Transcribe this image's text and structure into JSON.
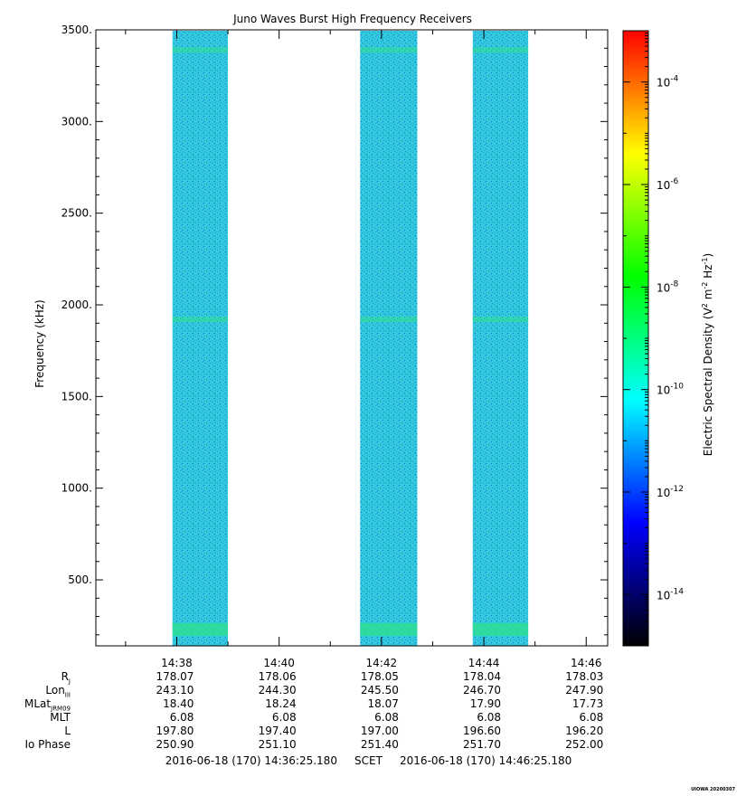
{
  "title": "Juno Waves Burst High Frequency Receivers",
  "colors": {
    "background": "#ffffff",
    "axis": "#000000",
    "spectrum_fill": "#33c9dd",
    "band_highlight": "#30e08a"
  },
  "chart_data": {
    "type": "heatmap",
    "title": "Juno Waves Burst High Frequency Receivers",
    "ylabel": "Frequency (kHz)",
    "ylim": [
      140,
      3500
    ],
    "yticks": [
      500,
      1000,
      1500,
      2000,
      2500,
      3000,
      3500
    ],
    "ytick_labels": [
      "500.",
      "1000.",
      "1500.",
      "2000.",
      "2500.",
      "3000.",
      "3500."
    ],
    "x_start": "2016-06-18 14:36:25.180",
    "x_end": "2016-06-18 14:46:25.180",
    "xticks": [
      "14:38",
      "14:40",
      "14:42",
      "14:44",
      "14:46"
    ],
    "data_intervals": [
      {
        "start": "14:37:55",
        "end": "14:39:00"
      },
      {
        "start": "14:41:35",
        "end": "14:42:42"
      },
      {
        "start": "14:43:47",
        "end": "14:44:52"
      }
    ],
    "enhanced_bands_khz": [
      230,
      1920,
      3390
    ],
    "colorbar": {
      "label": "Electric Spectral Density (V2 m-2 Hz-1)",
      "scale": "log",
      "range": [
        1e-15,
        0.001
      ],
      "ticks": [
        "10-4",
        "10-6",
        "10-8",
        "10-10",
        "10-12",
        "10-14"
      ],
      "tick_exponents": [
        -4,
        -6,
        -8,
        -10,
        -12,
        -14
      ],
      "colormap": [
        "#000000",
        "#00007f",
        "#0000ff",
        "#007fff",
        "#00ffff",
        "#00ff7f",
        "#00ff00",
        "#7fff00",
        "#ffff00",
        "#ff7f00",
        "#ff0000"
      ]
    },
    "grid": false
  },
  "ephemeris": {
    "labels": [
      "RJ",
      "LonIII",
      "MLatJRM09",
      "MLT",
      "L",
      "Io Phase"
    ],
    "label_main": [
      "R",
      "Lon",
      "MLat",
      "MLT",
      "L",
      "Io Phase"
    ],
    "label_sub": [
      "J",
      "III",
      "JRM09",
      "",
      "",
      ""
    ],
    "columns": [
      [
        "178.07",
        "243.10",
        "18.40",
        "6.08",
        "197.80",
        "250.90"
      ],
      [
        "178.06",
        "244.30",
        "18.24",
        "6.08",
        "197.40",
        "251.10"
      ],
      [
        "178.05",
        "245.50",
        "18.07",
        "6.08",
        "197.00",
        "251.40"
      ],
      [
        "178.04",
        "246.70",
        "17.90",
        "6.08",
        "196.60",
        "251.70"
      ],
      [
        "178.03",
        "247.90",
        "17.73",
        "6.08",
        "196.20",
        "252.00"
      ]
    ]
  },
  "footer": {
    "start": "2016-06-18 (170) 14:36:25.180",
    "mid": "SCET",
    "end": "2016-06-18 (170) 14:46:25.180"
  },
  "stamp": "UIOWA 20200307"
}
